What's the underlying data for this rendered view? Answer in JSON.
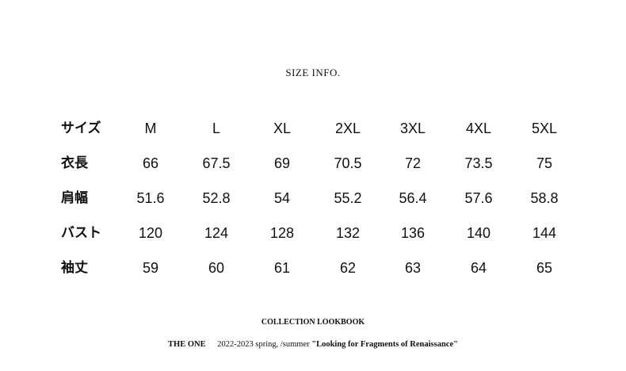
{
  "title": "SIZE INFO.",
  "table": {
    "rows": [
      {
        "label": "サイズ",
        "values": [
          "M",
          "L",
          "XL",
          "2XL",
          "3XL",
          "4XL",
          "5XL"
        ]
      },
      {
        "label": "衣長",
        "values": [
          "66",
          "67.5",
          "69",
          "70.5",
          "72",
          "73.5",
          "75"
        ]
      },
      {
        "label": "肩幅",
        "values": [
          "51.6",
          "52.8",
          "54",
          "55.2",
          "56.4",
          "57.6",
          "58.8"
        ]
      },
      {
        "label": "バスト",
        "values": [
          "120",
          "124",
          "128",
          "132",
          "136",
          "140",
          "144"
        ]
      },
      {
        "label": "袖丈",
        "values": [
          "59",
          "60",
          "61",
          "62",
          "63",
          "64",
          "65"
        ]
      }
    ]
  },
  "footer": {
    "heading": "COLLECTION LOOKBOOK",
    "brand": "THE ONE",
    "season": "2022-2023 spring, /summer",
    "collection": "\"Looking for Fragments of Renaissance\""
  }
}
